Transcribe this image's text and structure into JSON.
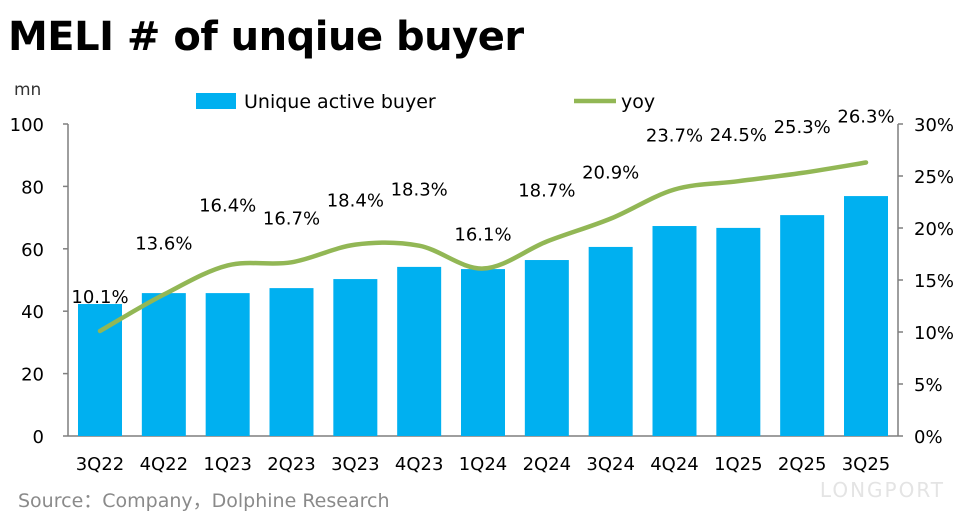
{
  "chart_data": {
    "type": "bar+line",
    "title": "MELI # of unqiue buyer",
    "ylabel_left": "mn",
    "categories": [
      "3Q22",
      "4Q22",
      "1Q23",
      "2Q23",
      "3Q23",
      "4Q23",
      "1Q24",
      "2Q24",
      "3Q24",
      "4Q24",
      "1Q25",
      "2Q25",
      "3Q25"
    ],
    "series": [
      {
        "name": "Unique active buyer",
        "type": "bar",
        "axis": "left",
        "color": "#00B0F0",
        "values": [
          42.3,
          45.8,
          45.8,
          47.4,
          50.3,
          54.2,
          53.5,
          56.4,
          60.6,
          67.3,
          66.7,
          70.8,
          76.9
        ]
      },
      {
        "name": "yoy",
        "type": "line",
        "axis": "right",
        "color": "#92B755",
        "values": [
          10.1,
          13.6,
          16.4,
          16.7,
          18.4,
          18.3,
          16.1,
          18.7,
          20.9,
          23.7,
          24.5,
          25.3,
          26.3
        ],
        "labels": [
          "10.1%",
          "13.6%",
          "16.4%",
          "16.7%",
          "18.4%",
          "18.3%",
          "16.1%",
          "18.7%",
          "20.9%",
          "23.7%",
          "24.5%",
          "25.3%",
          "26.3%"
        ]
      }
    ],
    "left_axis": {
      "range": [
        0,
        100
      ],
      "ticks": [
        "0",
        "20",
        "40",
        "60",
        "80",
        "100"
      ]
    },
    "right_axis": {
      "range": [
        0,
        30
      ],
      "ticks": [
        "0%",
        "5%",
        "10%",
        "15%",
        "20%",
        "25%",
        "30%"
      ]
    },
    "legend_placement": "top",
    "grid": false
  },
  "source": "Source：Company，Dolphine Research",
  "watermark": "LONGPORT"
}
